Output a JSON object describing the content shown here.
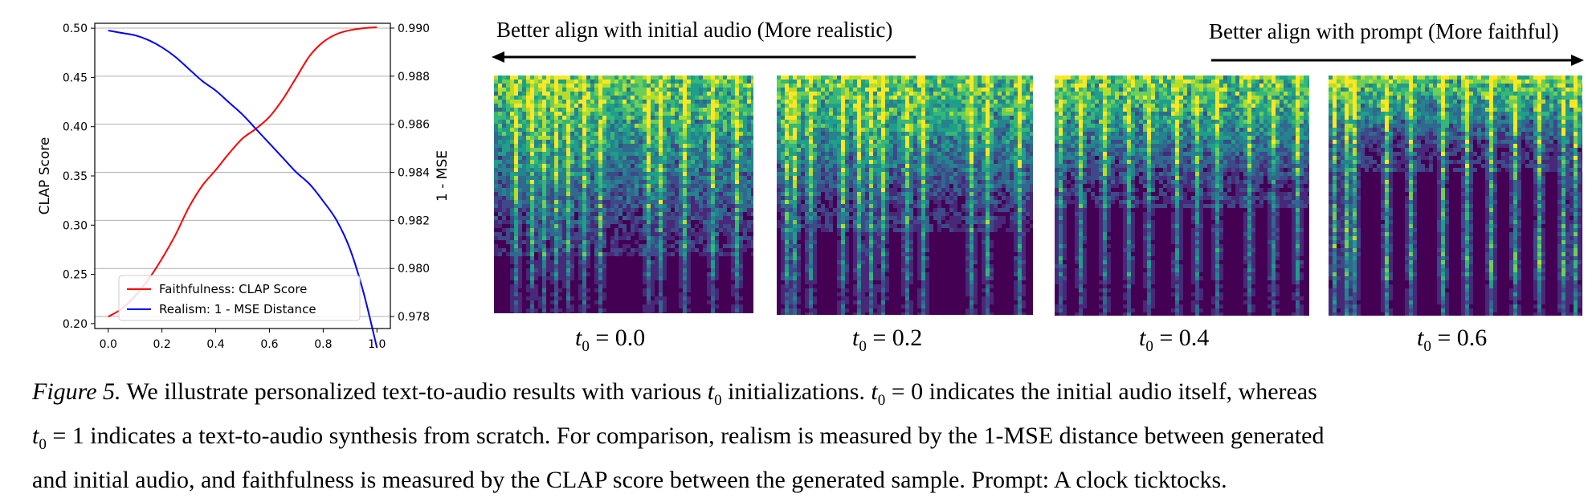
{
  "chart_data": {
    "type": "line",
    "x": [
      0.0,
      0.05,
      0.1,
      0.15,
      0.2,
      0.25,
      0.3,
      0.35,
      0.4,
      0.45,
      0.5,
      0.55,
      0.6,
      0.65,
      0.7,
      0.75,
      0.8,
      0.85,
      0.9,
      0.95,
      1.0
    ],
    "xticks": [
      "0.0",
      "0.2",
      "0.4",
      "0.6",
      "0.8",
      "1.0"
    ],
    "xlim": [
      -0.05,
      1.05
    ],
    "ylabel": "CLAP Score",
    "ylim": [
      0.195,
      0.505
    ],
    "yticks": [
      "0.20",
      "0.25",
      "0.30",
      "0.35",
      "0.40",
      "0.45",
      "0.50"
    ],
    "y2label": "1 - MSE",
    "y2lim": [
      0.9775,
      0.9902
    ],
    "y2ticks": [
      "0.978",
      "0.980",
      "0.982",
      "0.984",
      "0.986",
      "0.988",
      "0.990"
    ],
    "grid": "horizontal",
    "legend_position": "lower-left",
    "series": [
      {
        "name": "Faithfulness: CLAP Score",
        "color": "#ff0000",
        "axis": "left",
        "values": [
          0.207,
          0.215,
          0.228,
          0.245,
          0.266,
          0.29,
          0.318,
          0.34,
          0.356,
          0.373,
          0.388,
          0.398,
          0.41,
          0.428,
          0.45,
          0.472,
          0.486,
          0.494,
          0.498,
          0.5,
          0.501
        ]
      },
      {
        "name": "Realism: 1 - MSE Distance",
        "color": "#0000ff",
        "axis": "right",
        "values": [
          0.9899,
          0.9898,
          0.9897,
          0.9895,
          0.9892,
          0.9888,
          0.9883,
          0.9878,
          0.9874,
          0.9869,
          0.9864,
          0.9858,
          0.9852,
          0.9846,
          0.984,
          0.9835,
          0.9828,
          0.982,
          0.9808,
          0.979,
          0.9767
        ]
      }
    ]
  },
  "figure": {
    "left_arrow_text": "Better align with initial audio (More realistic)",
    "right_arrow_text": "Better align with prompt (More faithful)",
    "colors": {
      "spec_background": "#440154",
      "arrow": "#000000"
    },
    "spectrogram_labels": [
      {
        "var": "t",
        "sub": "0",
        "rest": " = 0.0"
      },
      {
        "var": "t",
        "sub": "0",
        "rest": " = 0.2"
      },
      {
        "var": "t",
        "sub": "0",
        "rest": " = 0.4"
      },
      {
        "var": "t",
        "sub": "0",
        "rest": " = 0.6"
      }
    ]
  },
  "caption": {
    "label": "Figure 5.",
    "line1_a": " We illustrate personalized text-to-audio results with various ",
    "line1_b": " initializations. ",
    "line1_c": " = 0 indicates the initial audio itself, whereas",
    "line2_a": " = 1 indicates a text-to-audio synthesis from scratch. For comparison, realism is measured by the 1-MSE distance between generated",
    "line3": "and initial audio, and faithfulness is measured by the CLAP score between the generated sample. Prompt: A clock ticktocks."
  }
}
